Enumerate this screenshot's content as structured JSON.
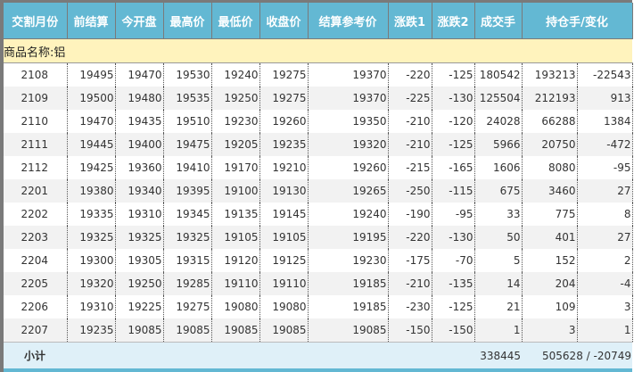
{
  "headers": [
    "交割月份",
    "前结算",
    "今开盘",
    "最高价",
    "最低价",
    "收盘价",
    "结算参考价",
    "涨跌1",
    "涨跌2",
    "成交手",
    "持仓手/变化"
  ],
  "goods_label": "商品名称:铝",
  "rows": [
    [
      "2108",
      "19495",
      "19470",
      "19530",
      "19240",
      "19275",
      "19370",
      "-220",
      "-125",
      "180542",
      "193213",
      "-22543"
    ],
    [
      "2109",
      "19500",
      "19480",
      "19535",
      "19250",
      "19275",
      "19370",
      "-225",
      "-130",
      "125504",
      "212193",
      "913"
    ],
    [
      "2110",
      "19470",
      "19435",
      "19510",
      "19230",
      "19260",
      "19350",
      "-210",
      "-120",
      "24028",
      "66288",
      "1384"
    ],
    [
      "2111",
      "19445",
      "19400",
      "19475",
      "19205",
      "19235",
      "19320",
      "-210",
      "-125",
      "5966",
      "20750",
      "-472"
    ],
    [
      "2112",
      "19425",
      "19360",
      "19410",
      "19170",
      "19210",
      "19260",
      "-215",
      "-165",
      "1606",
      "8080",
      "-95"
    ],
    [
      "2201",
      "19380",
      "19340",
      "19395",
      "19100",
      "19130",
      "19265",
      "-250",
      "-115",
      "675",
      "3460",
      "27"
    ],
    [
      "2202",
      "19335",
      "19310",
      "19345",
      "19135",
      "19145",
      "19240",
      "-190",
      "-95",
      "33",
      "775",
      "8"
    ],
    [
      "2203",
      "19325",
      "19325",
      "19325",
      "19105",
      "19105",
      "19195",
      "-220",
      "-130",
      "50",
      "401",
      "27"
    ],
    [
      "2204",
      "19300",
      "19305",
      "19315",
      "19120",
      "19125",
      "19230",
      "-175",
      "-70",
      "5",
      "152",
      "2"
    ],
    [
      "2205",
      "19320",
      "19250",
      "19285",
      "19110",
      "19110",
      "19185",
      "-210",
      "-135",
      "14",
      "204",
      "-4"
    ],
    [
      "2206",
      "19310",
      "19225",
      "19275",
      "19080",
      "19080",
      "19185",
      "-230",
      "-125",
      "21",
      "109",
      "3"
    ],
    [
      "2207",
      "19235",
      "19085",
      "19085",
      "19085",
      "19085",
      "19085",
      "-150",
      "-150",
      "1",
      "3",
      "1"
    ]
  ],
  "subtotal": {
    "label": "小计",
    "volume": "338445",
    "open_interest": "505628 / -20749"
  }
}
